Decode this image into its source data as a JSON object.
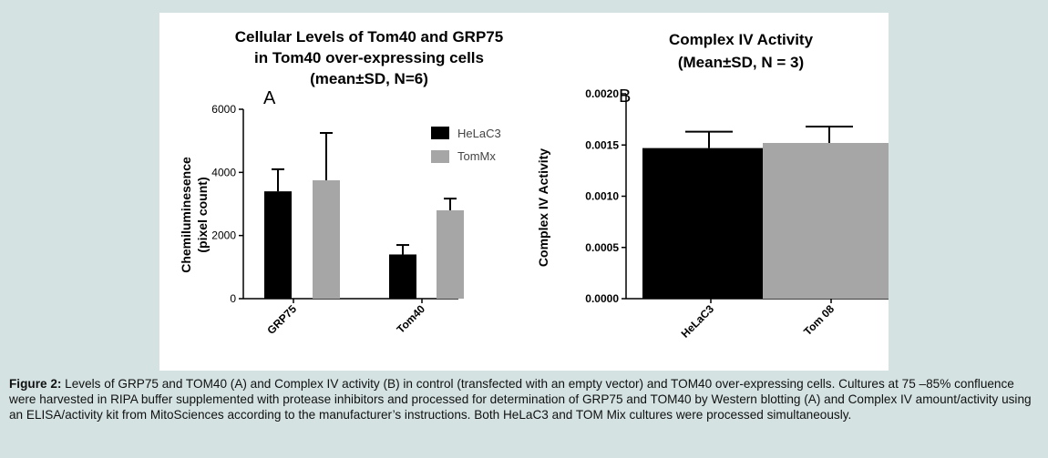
{
  "caption": {
    "label": "Figure 2:",
    "text": " Levels of GRP75 and TOM40 (A) and Complex IV activity (B) in control (transfected with an empty vector) and TOM40 over-expressing cells. Cultures at 75 –85% confluence were harvested in RIPA buffer supplemented with protease inhibitors and processed for determination of GRP75 and TOM40 by Western blotting (A) and Complex IV amount/activity using an ELISA/activity kit from MitoSciences according to the manufacturer’s instructions. Both HeLaC3 and TOM Mix cultures were processed simultaneously."
  },
  "chart_data": [
    {
      "type": "bar",
      "panel": "A",
      "title": [
        "Cellular Levels of Tom40 and GRP75",
        "in Tom40 over-expressing cells",
        "(mean±SD, N=6)"
      ],
      "ylabel": [
        "Chemiluminesence",
        "(pixel count)"
      ],
      "xlabel": "",
      "categories": [
        "GRP75",
        "Tom40"
      ],
      "series": [
        {
          "name": "HeLaC3",
          "color": "#000000",
          "values": [
            3400,
            1400
          ],
          "errors": [
            700,
            300
          ]
        },
        {
          "name": "TomMx",
          "color": "#a6a6a6",
          "values": [
            3750,
            2800
          ],
          "errors": [
            1500,
            370
          ]
        }
      ],
      "ylim": [
        0,
        6000
      ],
      "yticks": [
        "0",
        "2000",
        "4000",
        "6000"
      ],
      "ytick_values": [
        0,
        2000,
        4000,
        6000
      ],
      "legend": "top-right",
      "grid": false
    },
    {
      "type": "bar",
      "panel": "B",
      "title": [
        "Complex IV Activity",
        "(Mean±SD, N = 3)"
      ],
      "ylabel": [
        "Complex IV Activity"
      ],
      "xlabel": "",
      "categories": [
        "HeLaC3",
        "Tom 08"
      ],
      "series": [
        {
          "values": [
            0.00147,
            0.00152
          ],
          "errors": [
            0.00016,
            0.00016
          ],
          "colors": [
            "#000000",
            "#a6a6a6"
          ]
        }
      ],
      "ylim": [
        0,
        0.002
      ],
      "yticks": [
        "0.0000",
        "0.0005",
        "0.0010",
        "0.0015",
        "0.0020"
      ],
      "ytick_values": [
        0,
        0.0005,
        0.001,
        0.0015,
        0.002
      ],
      "legend": "none",
      "grid": false
    }
  ]
}
